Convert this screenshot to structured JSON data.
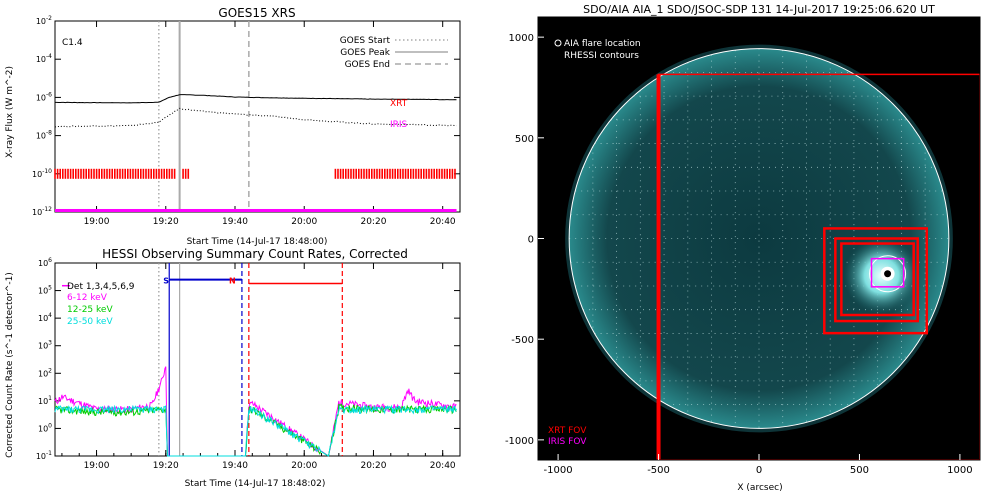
{
  "chart_data": [
    {
      "type": "line",
      "title": "GOES15 XRS",
      "xlabel": "Start Time (14-Jul-17 18:48:00)",
      "ylabel": "X-ray Flux (W m^-2)",
      "yscale": "log",
      "ylim": [
        1e-12,
        0.01
      ],
      "xlim_minutes": [
        18.8,
        20.75
      ],
      "x_tick_labels": [
        "19:00",
        "19:20",
        "19:40",
        "20:00",
        "20:20",
        "20:40"
      ],
      "y_tick_labels": [
        "10^-12",
        "10^-10",
        "10^-8",
        "10^-6",
        "10^-4",
        "10^-2"
      ],
      "class_label": "C1.4",
      "legend": [
        {
          "name": "GOES Start",
          "style": "dotted",
          "color": "#999999"
        },
        {
          "name": "GOES Peak",
          "style": "solid",
          "color": "#aaaaaa"
        },
        {
          "name": "GOES End",
          "style": "dashed",
          "color": "#aaaaaa"
        }
      ],
      "vlines": {
        "start": "19:18",
        "peak": "19:24",
        "end": "19:44"
      },
      "series": [
        {
          "name": "",
          "style": "solid",
          "color": "#000000",
          "x": [
            "18:48",
            "19:00",
            "19:10",
            "19:18",
            "19:21",
            "19:24",
            "19:30",
            "19:40",
            "19:50",
            "20:00",
            "20:10",
            "20:20",
            "20:30",
            "20:44"
          ],
          "y": [
            5.5e-07,
            5.3e-07,
            5.2e-07,
            5.6e-07,
            1e-06,
            1.4e-06,
            1.3e-06,
            1.05e-06,
            9.6e-07,
            9e-07,
            8.6e-07,
            8.1e-07,
            8e-07,
            7.6e-07
          ]
        },
        {
          "name": "",
          "style": "dotted",
          "color": "#000000",
          "x": [
            "18:48",
            "19:00",
            "19:10",
            "19:18",
            "19:21",
            "19:24",
            "19:30",
            "19:40",
            "19:50",
            "20:00",
            "20:10",
            "20:20",
            "20:30",
            "20:44"
          ],
          "y": [
            3e-08,
            3.2e-08,
            3.3e-08,
            5e-08,
            1.2e-07,
            2.6e-07,
            1.9e-07,
            1.35e-07,
            1.05e-07,
            7e-08,
            5.2e-08,
            4.1e-08,
            3.8e-08,
            3.3e-08
          ]
        }
      ],
      "coverage": [
        {
          "name": "XRT",
          "color": "#ff0000",
          "y": 1e-10,
          "segments": [
            [
              "18:48",
              "19:23"
            ],
            [
              "19:25",
              "19:27"
            ],
            [
              "20:09",
              "20:44"
            ]
          ]
        },
        {
          "name": "IRIS",
          "color": "#ff00ff",
          "y": 1.2e-12,
          "segments": [
            [
              "18:48",
              "20:44"
            ]
          ]
        }
      ]
    },
    {
      "type": "line",
      "title": "HESSI Observing Summary Count Rates, Corrected",
      "xlabel": "Start Time (14-Jul-17 18:48:02)",
      "ylabel": "Corrected Count Rate (s^-1 detector^-1)",
      "yscale": "log",
      "ylim": [
        0.1,
        1000000.0
      ],
      "xlim_minutes": [
        18.8,
        20.75
      ],
      "x_tick_labels": [
        "19:00",
        "19:20",
        "19:40",
        "20:00",
        "20:20",
        "20:40"
      ],
      "y_tick_labels": [
        "10^-1",
        "10^0",
        "10^1",
        "10^2",
        "10^3",
        "10^4",
        "10^5",
        "10^6"
      ],
      "legend_title": "Det 1,3,4,5,6,9",
      "annotations": [
        {
          "text": "S",
          "color": "#0000cc",
          "x": "19:21"
        },
        {
          "text": "N",
          "color": "#ff0000",
          "x": "19:40"
        }
      ],
      "vlines": [
        {
          "x": "19:18",
          "style": "dotted",
          "color": "#999999"
        },
        {
          "x": "19:21",
          "style": "solid",
          "color": "#0000cc"
        },
        {
          "x": "19:24",
          "style": "solid",
          "color": "#aaaaaa"
        },
        {
          "x": "19:42",
          "style": "dashed",
          "color": "#0000cc"
        },
        {
          "x": "19:44",
          "style": "dashed",
          "color": "#ff0000"
        },
        {
          "x": "20:11",
          "style": "dashed",
          "color": "#ff0000"
        }
      ],
      "night_bar": {
        "color": "#0000cc",
        "y": 250000.0,
        "from": "19:21",
        "to": "19:42"
      },
      "saa_bar": {
        "color": "#ff0000",
        "y": 180000.0,
        "from": "19:44",
        "to": "20:11"
      },
      "series": [
        {
          "name": "6-12 keV",
          "color": "#ff00ff",
          "x": [
            "18:48",
            "18:50",
            "19:00",
            "19:10",
            "19:16",
            "19:19",
            "19:20",
            "19:20.5",
            "19:43",
            "19:44",
            "19:45",
            "20:07",
            "20:10",
            "20:20",
            "20:28",
            "20:30",
            "20:32",
            "20:40",
            "20:44"
          ],
          "y": [
            9,
            14,
            5,
            5,
            7,
            60,
            200,
            0.1,
            0.1,
            7,
            8,
            0.1,
            9,
            6,
            6,
            25,
            10,
            7,
            6
          ]
        },
        {
          "name": "12-25 keV",
          "color": "#00cc00",
          "x": [
            "18:48",
            "19:00",
            "19:10",
            "19:19",
            "19:20",
            "19:20.5",
            "19:43",
            "19:44",
            "19:45",
            "20:07",
            "20:10",
            "20:20",
            "20:30",
            "20:44"
          ],
          "y": [
            5,
            4,
            4,
            5,
            5,
            0.1,
            0.1,
            5,
            5,
            0.1,
            6,
            5,
            5,
            5
          ]
        },
        {
          "name": "25-50 keV",
          "color": "#00dddd",
          "x": [
            "18:48",
            "19:00",
            "19:10",
            "19:19",
            "19:20",
            "19:20.5",
            "19:43",
            "19:44",
            "19:45",
            "20:07",
            "20:10",
            "20:20",
            "20:30",
            "20:44"
          ],
          "y": [
            5,
            5,
            5,
            5,
            5,
            0.1,
            0.1,
            5,
            5,
            0.1,
            5,
            5,
            5,
            5
          ]
        }
      ]
    },
    {
      "type": "other",
      "title": "SDO/AIA AIA_1 SDO/JSOC-SDP 131 14-Jul-2017 19:25:06.620 UT",
      "xlabel": "X (arcsec)",
      "ylabel": "",
      "xlim": [
        -1100,
        1100
      ],
      "ylim": [
        -1100,
        1100
      ],
      "x_tick_labels": [
        "-1000",
        "-500",
        "0",
        "500",
        "1000"
      ],
      "y_tick_labels": [
        "-1000",
        "-500",
        "0",
        "500",
        "1000"
      ],
      "legend": [
        "AIA flare location",
        "RHESSI contours"
      ],
      "fov_legend": [
        {
          "name": "XRT FOV",
          "color": "#ff0000"
        },
        {
          "name": "IRIS FOV",
          "color": "#ff00ff"
        }
      ],
      "solar_radius_arcsec": 945,
      "flare_location": {
        "x": 640,
        "y": -175
      },
      "xrt_fov_boxes": [
        {
          "x0": -500,
          "x1": 1100,
          "y0": -1100,
          "y1": 815
        },
        {
          "x0": 325,
          "x1": 835,
          "y0": -470,
          "y1": 50
        },
        {
          "x0": 380,
          "x1": 790,
          "y0": -410,
          "y1": 0
        },
        {
          "x0": 410,
          "x1": 770,
          "y0": -380,
          "y1": -25
        }
      ],
      "iris_fov_box": {
        "x0": 560,
        "x1": 720,
        "y0": -240,
        "y1": -100
      }
    }
  ]
}
